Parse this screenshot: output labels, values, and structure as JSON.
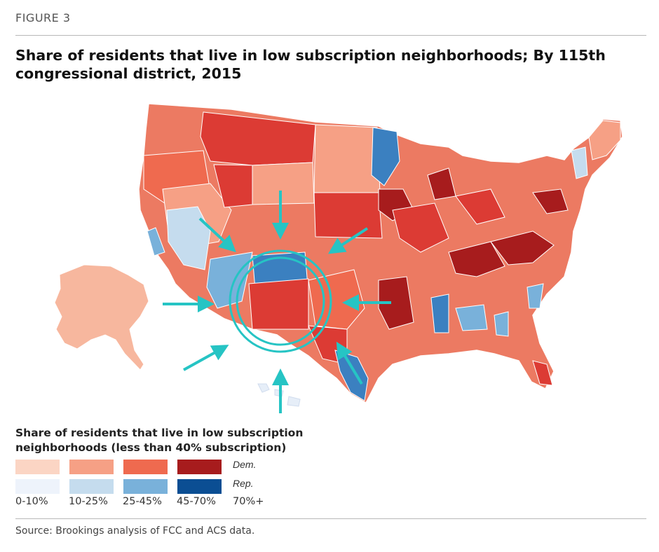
{
  "figure_label": "FIGURE 3",
  "title": "Share of residents that live in low subscription neighborhoods; By 115th congressional district, 2015",
  "legend": {
    "title": "Share of residents that live in low subscription neighborhoods (less than 40% subscription)",
    "party_labels": {
      "dem": "Dem.",
      "rep": "Rep."
    },
    "ranges": [
      "0-10%",
      "10-25%",
      "25-45%",
      "45-70%",
      "70%+"
    ],
    "dem_colors": [
      "#fbd5c4",
      "#f6a085",
      "#ef6a4f",
      "#dc3b34",
      "#a71c1d"
    ],
    "rep_colors": [
      "#eef3fb",
      "#c5dcee",
      "#79b1da",
      "#3b80c0",
      "#0b4e93"
    ]
  },
  "annotation": {
    "color": "#26c4c4",
    "highlighted_state": "New Mexico"
  },
  "source": "Source: Brookings analysis of FCC and ACS data."
}
